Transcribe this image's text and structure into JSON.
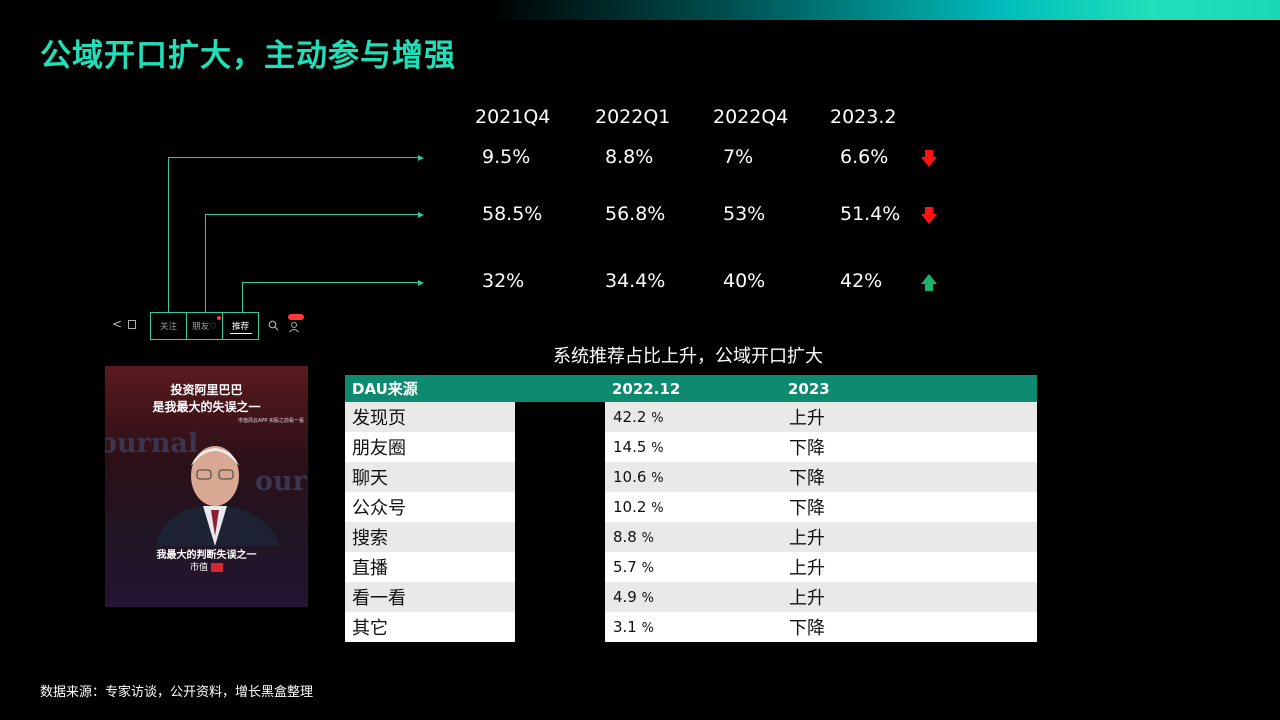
{
  "title": "公域开口扩大，主动参与增强",
  "metrics": {
    "columns": [
      "2021Q4",
      "2022Q1",
      "2022Q4",
      "2023.2"
    ],
    "rows": [
      {
        "values": [
          "9.5%",
          "8.8%",
          "7%",
          "6.6%"
        ],
        "trend": "down"
      },
      {
        "values": [
          "58.5%",
          "56.8%",
          "53%",
          "51.4%"
        ],
        "trend": "down"
      },
      {
        "values": [
          "32%",
          "34.4%",
          "40%",
          "42%"
        ],
        "trend": "up"
      }
    ],
    "colors": {
      "down": "#ff1212",
      "up": "#19b36b",
      "connector": "#35c9a1"
    }
  },
  "phone": {
    "tabs": [
      "关注",
      "朋友♡",
      "推荐"
    ],
    "video_top_caption": [
      "投资阿里巴巴",
      "是我最大的失误之一"
    ],
    "video_bottom_caption": "我最大的判断失误之一",
    "video_brand": "市值",
    "video_small_text": "市值风云APP·买股之前看一看",
    "video_bg_word": "ournal"
  },
  "subtitle": "系统推荐占比上升，公域开口扩大",
  "dau_table": {
    "headers": [
      "DAU来源",
      "2022.12",
      "2023"
    ],
    "rows": [
      {
        "source": "发现页",
        "value": "42.2",
        "unit": "%",
        "change": "上升",
        "dir": "up"
      },
      {
        "source": "朋友圈",
        "value": "14.5",
        "unit": "%",
        "change": "下降",
        "dir": "down"
      },
      {
        "source": "聊天",
        "value": "10.6",
        "unit": "%",
        "change": "下降",
        "dir": "down"
      },
      {
        "source": "公众号",
        "value": "10.2",
        "unit": "%",
        "change": "下降",
        "dir": "down"
      },
      {
        "source": "搜索",
        "value": "8.8",
        "unit": "%",
        "change": "上升",
        "dir": "up"
      },
      {
        "source": "直播",
        "value": "5.7",
        "unit": "%",
        "change": "上升",
        "dir": "up"
      },
      {
        "source": "看一看",
        "value": "4.9",
        "unit": "%",
        "change": "上升",
        "dir": "up"
      },
      {
        "source": "其它",
        "value": "3.1",
        "unit": "%",
        "change": "下降",
        "dir": "down"
      }
    ],
    "header_color": "#0e8b6e"
  },
  "source_note": "数据来源：专家访谈，公开资料，增长黑盒整理"
}
